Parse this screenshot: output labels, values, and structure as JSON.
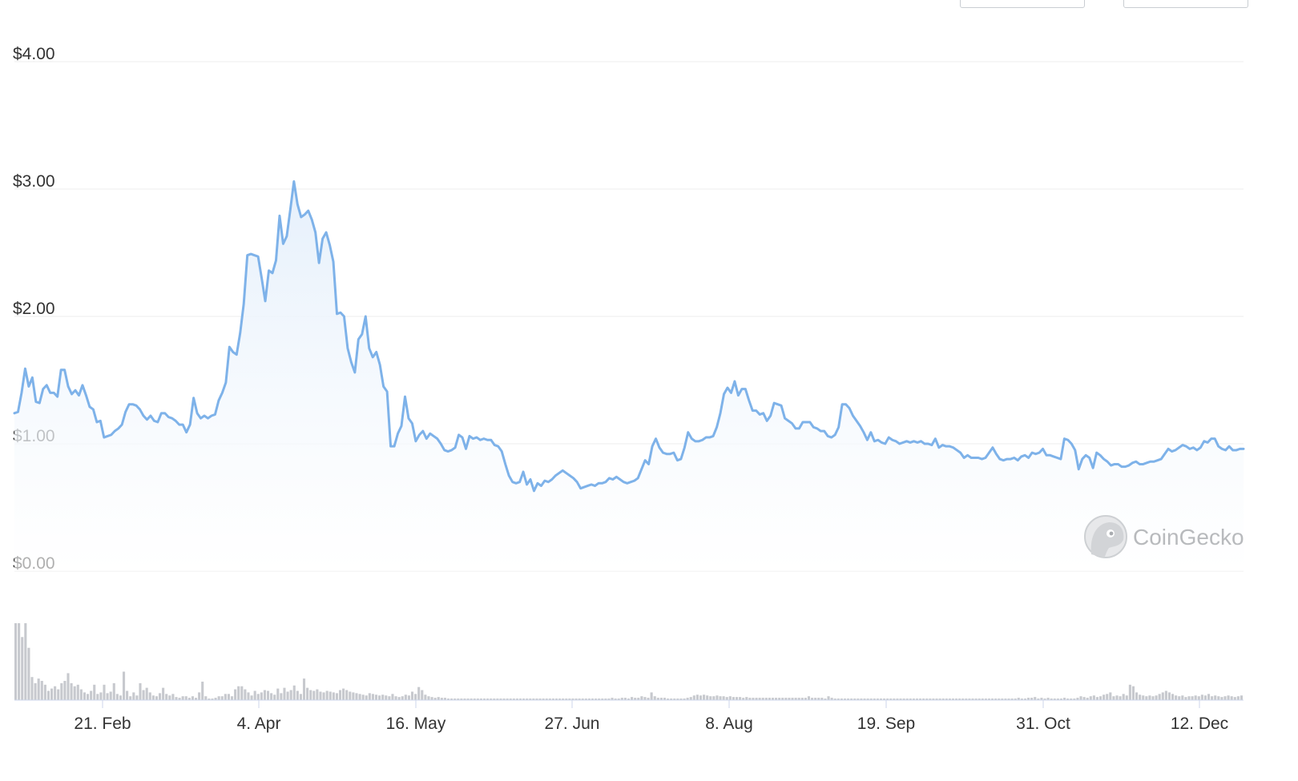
{
  "colors": {
    "line": "#7eb2e9",
    "area_top": "#e4effb",
    "area_bottom": "#ffffff",
    "grid": "#ececec",
    "axis_text": "#333333",
    "volume_bar": "#c7c9ce",
    "watermark": "#b8babd"
  },
  "watermark": {
    "text": "CoinGecko",
    "icon": "gecko-logo-icon"
  },
  "chart_data": {
    "type": "line",
    "title": "",
    "xlabel": "",
    "ylabel": "",
    "y_tick_labels": [
      "$0.00",
      "$1.00",
      "$2.00",
      "$3.00",
      "$4.00"
    ],
    "y_ticks": [
      0,
      1,
      2,
      3,
      4
    ],
    "ylim": [
      0,
      4
    ],
    "x_tick_labels": [
      "21. Feb",
      "4. Apr",
      "16. May",
      "27. Jun",
      "8. Aug",
      "19. Sep",
      "31. Oct",
      "12. Dec"
    ],
    "grid": true,
    "legend": "none",
    "series": [
      {
        "values": [
          1.24,
          1.25,
          1.4,
          1.59,
          1.45,
          1.52,
          1.33,
          1.32,
          1.43,
          1.46,
          1.4,
          1.4,
          1.37,
          1.58,
          1.58,
          1.45,
          1.39,
          1.42,
          1.38,
          1.46,
          1.38,
          1.29,
          1.27,
          1.17,
          1.18,
          1.05,
          1.06,
          1.07,
          1.1,
          1.12,
          1.15,
          1.25,
          1.31,
          1.31,
          1.3,
          1.27,
          1.22,
          1.19,
          1.22,
          1.18,
          1.17,
          1.24,
          1.24,
          1.21,
          1.2,
          1.18,
          1.15,
          1.15,
          1.09,
          1.15,
          1.36,
          1.24,
          1.2,
          1.22,
          1.2,
          1.22,
          1.23,
          1.34,
          1.4,
          1.48,
          1.76,
          1.72,
          1.7,
          1.87,
          2.1,
          2.48,
          2.49,
          2.48,
          2.47,
          2.3,
          2.12,
          2.36,
          2.34,
          2.44,
          2.79,
          2.57,
          2.63,
          2.84,
          3.06,
          2.88,
          2.78,
          2.8,
          2.83,
          2.76,
          2.66,
          2.42,
          2.61,
          2.66,
          2.56,
          2.43,
          2.02,
          2.03,
          2.0,
          1.75,
          1.64,
          1.56,
          1.82,
          1.86,
          2.0,
          1.75,
          1.68,
          1.72,
          1.62,
          1.45,
          1.41,
          0.98,
          0.98,
          1.08,
          1.14,
          1.37,
          1.2,
          1.16,
          1.02,
          1.07,
          1.1,
          1.04,
          1.08,
          1.06,
          1.04,
          1.0,
          0.95,
          0.94,
          0.95,
          0.97,
          1.07,
          1.05,
          0.96,
          1.06,
          1.04,
          1.05,
          1.03,
          1.04,
          1.03,
          1.03,
          0.99,
          0.98,
          0.94,
          0.84,
          0.75,
          0.7,
          0.69,
          0.7,
          0.78,
          0.68,
          0.72,
          0.63,
          0.69,
          0.67,
          0.71,
          0.7,
          0.72,
          0.75,
          0.77,
          0.79,
          0.77,
          0.75,
          0.73,
          0.7,
          0.65,
          0.66,
          0.67,
          0.68,
          0.67,
          0.69,
          0.69,
          0.7,
          0.73,
          0.72,
          0.74,
          0.72,
          0.7,
          0.69,
          0.7,
          0.71,
          0.73,
          0.8,
          0.87,
          0.84,
          0.98,
          1.04,
          0.97,
          0.93,
          0.92,
          0.92,
          0.93,
          0.87,
          0.88,
          0.97,
          1.09,
          1.04,
          1.02,
          1.02,
          1.03,
          1.05,
          1.05,
          1.06,
          1.13,
          1.24,
          1.39,
          1.44,
          1.4,
          1.49,
          1.38,
          1.43,
          1.43,
          1.34,
          1.26,
          1.26,
          1.23,
          1.24,
          1.18,
          1.22,
          1.32,
          1.31,
          1.3,
          1.2,
          1.18,
          1.16,
          1.12,
          1.12,
          1.17,
          1.17,
          1.17,
          1.13,
          1.12,
          1.1,
          1.1,
          1.06,
          1.05,
          1.07,
          1.13,
          1.31,
          1.31,
          1.28,
          1.22,
          1.18,
          1.14,
          1.09,
          1.03,
          1.09,
          1.02,
          1.03,
          1.01,
          1.0,
          1.05,
          1.03,
          1.02,
          1.0,
          1.01,
          1.02,
          1.01,
          1.02,
          1.01,
          1.02,
          1.0,
          1.0,
          0.99,
          1.04,
          0.97,
          0.99,
          0.98,
          0.98,
          0.97,
          0.95,
          0.93,
          0.89,
          0.91,
          0.89,
          0.89,
          0.89,
          0.88,
          0.89,
          0.93,
          0.97,
          0.92,
          0.88,
          0.87,
          0.88,
          0.88,
          0.89,
          0.87,
          0.9,
          0.91,
          0.89,
          0.93,
          0.92,
          0.93,
          0.96,
          0.91,
          0.91,
          0.9,
          0.89,
          0.88,
          1.04,
          1.03,
          1.0,
          0.95,
          0.8,
          0.88,
          0.91,
          0.89,
          0.81,
          0.93,
          0.91,
          0.88,
          0.86,
          0.83,
          0.84,
          0.84,
          0.82,
          0.82,
          0.83,
          0.85,
          0.86,
          0.84,
          0.84,
          0.85,
          0.86,
          0.86,
          0.87,
          0.88,
          0.92,
          0.96,
          0.94,
          0.95,
          0.97,
          0.99,
          0.98,
          0.96,
          0.97,
          0.95,
          0.97,
          1.02,
          1.01,
          1.04,
          1.04,
          0.98,
          0.96,
          0.95,
          0.98,
          0.95,
          0.95,
          0.96,
          0.96
        ]
      }
    ],
    "volume": [
      1.0,
      1.0,
      0.82,
      1.0,
      0.68,
      0.3,
      0.22,
      0.28,
      0.25,
      0.2,
      0.12,
      0.15,
      0.18,
      0.14,
      0.22,
      0.25,
      0.35,
      0.22,
      0.18,
      0.2,
      0.14,
      0.1,
      0.08,
      0.12,
      0.2,
      0.08,
      0.1,
      0.2,
      0.09,
      0.11,
      0.22,
      0.08,
      0.06,
      0.37,
      0.12,
      0.05,
      0.1,
      0.06,
      0.22,
      0.13,
      0.16,
      0.1,
      0.06,
      0.05,
      0.09,
      0.16,
      0.08,
      0.06,
      0.08,
      0.04,
      0.03,
      0.05,
      0.05,
      0.03,
      0.05,
      0.03,
      0.1,
      0.24,
      0.05,
      0.02,
      0.02,
      0.03,
      0.05,
      0.05,
      0.08,
      0.08,
      0.05,
      0.14,
      0.18,
      0.18,
      0.14,
      0.1,
      0.06,
      0.12,
      0.08,
      0.1,
      0.13,
      0.12,
      0.09,
      0.07,
      0.15,
      0.09,
      0.16,
      0.11,
      0.13,
      0.19,
      0.12,
      0.08,
      0.28,
      0.16,
      0.13,
      0.12,
      0.14,
      0.11,
      0.1,
      0.12,
      0.11,
      0.1,
      0.09,
      0.13,
      0.15,
      0.13,
      0.11,
      0.1,
      0.09,
      0.08,
      0.07,
      0.06,
      0.09,
      0.08,
      0.07,
      0.06,
      0.07,
      0.06,
      0.05,
      0.08,
      0.05,
      0.04,
      0.05,
      0.07,
      0.06,
      0.11,
      0.08,
      0.17,
      0.13,
      0.07,
      0.05,
      0.04,
      0.03,
      0.04,
      0.03,
      0.03,
      0.02,
      0.02,
      0.02,
      0.02,
      0.02,
      0.02,
      0.02,
      0.02,
      0.02,
      0.02,
      0.02,
      0.02,
      0.02,
      0.02,
      0.02,
      0.02,
      0.02,
      0.02,
      0.02,
      0.02,
      0.02,
      0.02,
      0.02,
      0.02,
      0.02,
      0.02,
      0.02,
      0.02,
      0.02,
      0.02,
      0.02,
      0.02,
      0.02,
      0.02,
      0.02,
      0.02,
      0.02,
      0.02,
      0.02,
      0.02,
      0.02,
      0.02,
      0.02,
      0.02,
      0.02,
      0.02,
      0.02,
      0.02,
      0.02,
      0.02,
      0.03,
      0.02,
      0.02,
      0.03,
      0.03,
      0.02,
      0.04,
      0.03,
      0.03,
      0.05,
      0.04,
      0.03,
      0.1,
      0.05,
      0.03,
      0.03,
      0.03,
      0.02,
      0.02,
      0.02,
      0.02,
      0.02,
      0.02,
      0.03,
      0.04,
      0.06,
      0.07,
      0.06,
      0.07,
      0.06,
      0.05,
      0.05,
      0.06,
      0.05,
      0.05,
      0.04,
      0.05,
      0.04,
      0.04,
      0.04,
      0.03,
      0.04,
      0.03,
      0.03,
      0.03,
      0.03,
      0.03,
      0.03,
      0.03,
      0.03,
      0.03,
      0.03,
      0.03,
      0.03,
      0.03,
      0.03,
      0.03,
      0.03,
      0.03,
      0.03,
      0.05,
      0.03,
      0.03,
      0.03,
      0.03,
      0.02,
      0.05,
      0.03,
      0.02,
      0.02,
      0.02,
      0.02,
      0.02,
      0.02,
      0.02,
      0.02,
      0.02,
      0.02,
      0.02,
      0.02,
      0.02,
      0.02,
      0.02,
      0.02,
      0.02,
      0.02,
      0.02,
      0.02,
      0.02,
      0.02,
      0.02,
      0.02,
      0.02,
      0.02,
      0.02,
      0.02,
      0.02,
      0.02,
      0.02,
      0.02,
      0.02,
      0.02,
      0.02,
      0.02,
      0.02,
      0.02,
      0.02,
      0.02,
      0.02,
      0.02,
      0.02,
      0.02,
      0.02,
      0.02,
      0.02,
      0.02,
      0.02,
      0.02,
      0.02,
      0.02,
      0.02,
      0.02,
      0.02,
      0.02,
      0.03,
      0.02,
      0.02,
      0.03,
      0.03,
      0.04,
      0.02,
      0.03,
      0.02,
      0.03,
      0.02,
      0.02,
      0.02,
      0.02,
      0.03,
      0.02,
      0.02,
      0.02,
      0.03,
      0.05,
      0.04,
      0.03,
      0.05,
      0.06,
      0.04,
      0.05,
      0.07,
      0.08,
      0.1,
      0.05,
      0.06,
      0.05,
      0.08,
      0.06,
      0.2,
      0.18,
      0.1,
      0.07,
      0.06,
      0.05,
      0.06,
      0.05,
      0.06,
      0.08,
      0.1,
      0.12,
      0.1,
      0.08,
      0.06,
      0.05,
      0.06,
      0.04,
      0.05,
      0.05,
      0.06,
      0.05,
      0.07,
      0.06,
      0.08,
      0.05,
      0.06,
      0.05,
      0.04,
      0.05,
      0.06,
      0.05,
      0.04,
      0.05,
      0.06
    ]
  }
}
